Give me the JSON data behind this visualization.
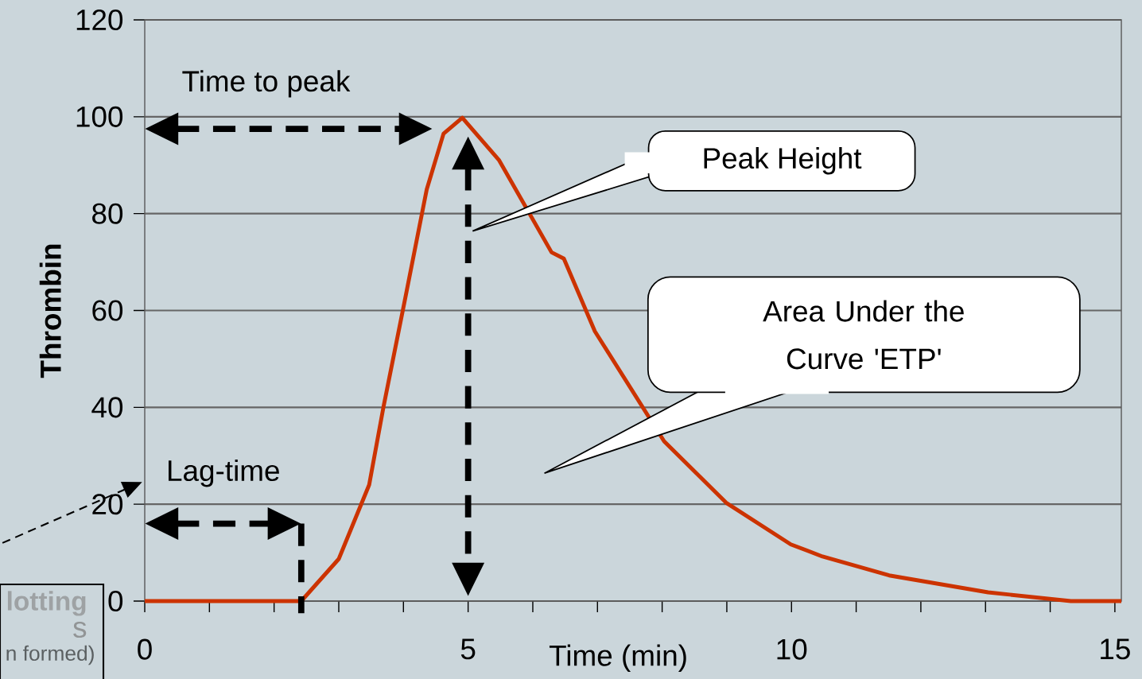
{
  "chart_data": {
    "type": "line",
    "xlabel": "Time (min)",
    "ylabel": "Thrombin",
    "x": [
      0,
      2.42,
      3.0,
      3.47,
      3.69,
      4.02,
      4.36,
      4.62,
      4.91,
      5.48,
      6.29,
      6.48,
      6.96,
      8.03,
      8.99,
      9.99,
      10.48,
      11.51,
      13.04,
      14.32,
      15.1
    ],
    "series": [
      {
        "color": "#cc3300",
        "values": [
          0,
          0,
          8.7,
          24,
          40,
          62,
          85,
          96.5,
          99.8,
          91,
          72,
          70.7,
          55.7,
          33,
          20.3,
          11.7,
          9.2,
          5.3,
          1.8,
          0,
          0
        ]
      }
    ],
    "xlim": [
      0,
      15.1
    ],
    "ylim": [
      0,
      120
    ],
    "xticks": [
      0,
      {
        "value": 1,
        "label": null
      },
      {
        "value": 2,
        "label": null
      },
      {
        "value": 3,
        "label": null
      },
      {
        "value": 4,
        "label": null
      },
      5,
      {
        "value": 6,
        "label": null
      },
      {
        "value": 7,
        "label": null
      },
      {
        "value": 8,
        "label": null
      },
      {
        "value": 9,
        "label": null
      },
      10,
      {
        "value": 11,
        "label": null
      },
      {
        "value": 12,
        "label": null
      },
      {
        "value": 13,
        "label": null
      },
      {
        "value": 14,
        "label": null
      },
      15
    ],
    "yticks": [
      0,
      20,
      40,
      60,
      80,
      100,
      120
    ],
    "grid": "y",
    "marker": "none",
    "line_style": "solid",
    "annotations": [
      "Time to peak",
      "Peak Height",
      "Area Under the Curve 'ETP'",
      "Lag-time",
      "lotting",
      "s",
      "n formed)"
    ]
  }
}
